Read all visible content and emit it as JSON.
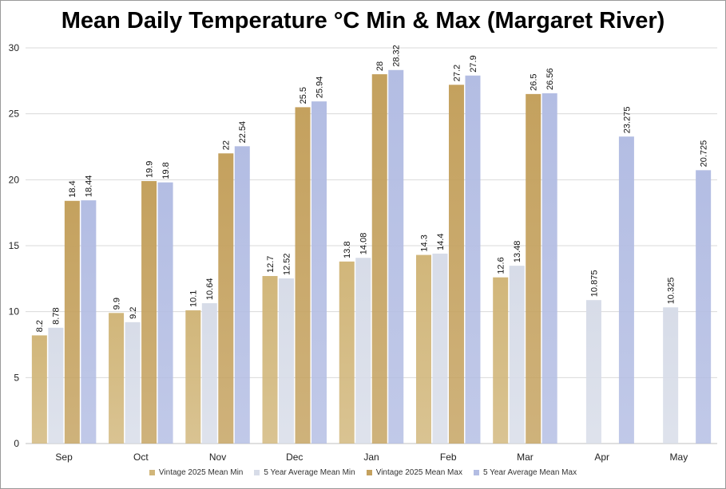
{
  "chart_data": {
    "type": "bar",
    "title": "Mean Daily Temperature °C Min & Max (Margaret River)",
    "xlabel": "",
    "ylabel": "",
    "ylim": [
      0,
      30
    ],
    "yticks": [
      "0",
      "5",
      "10",
      "15",
      "20",
      "25",
      "30"
    ],
    "grid": true,
    "legend_position": "bottom",
    "categories": [
      "Sep",
      "Oct",
      "Nov",
      "Dec",
      "Jan",
      "Feb",
      "Mar",
      "Apr",
      "May"
    ],
    "series": [
      {
        "name": "Vintage 2025 Mean Min",
        "color": "#d1b67a",
        "values": [
          8.2,
          9.9,
          10.1,
          12.7,
          13.8,
          14.3,
          12.6,
          null,
          null
        ],
        "labels": [
          "8.2",
          "9.9",
          "10.1",
          "12.7",
          "13.8",
          "14.3",
          "12.6",
          "",
          ""
        ]
      },
      {
        "name": "5 Year Average Mean Min",
        "color": "#d7dce8",
        "values": [
          8.78,
          9.2,
          10.64,
          12.52,
          14.08,
          14.4,
          13.48,
          10.875,
          10.325
        ],
        "labels": [
          "8.78",
          "9.2",
          "10.64",
          "12.52",
          "14.08",
          "14.4",
          "13.48",
          "10.875",
          "10.325"
        ]
      },
      {
        "name": "Vintage 2025 Mean Max",
        "color": "#c4a15e",
        "values": [
          18.4,
          19.9,
          22,
          25.5,
          28,
          27.2,
          26.5,
          null,
          null
        ],
        "labels": [
          "18.4",
          "19.9",
          "22",
          "25.5",
          "28",
          "27.2",
          "26.5",
          "",
          ""
        ]
      },
      {
        "name": "5 Year Average Mean Max",
        "color": "#b3bde3",
        "values": [
          18.44,
          19.8,
          22.54,
          25.94,
          28.32,
          27.9,
          26.56,
          23.275,
          20.725
        ],
        "labels": [
          "18.44",
          "19.8",
          "22.54",
          "25.94",
          "28.32",
          "27.9",
          "26.56",
          "23.275",
          "20.725"
        ]
      }
    ]
  }
}
